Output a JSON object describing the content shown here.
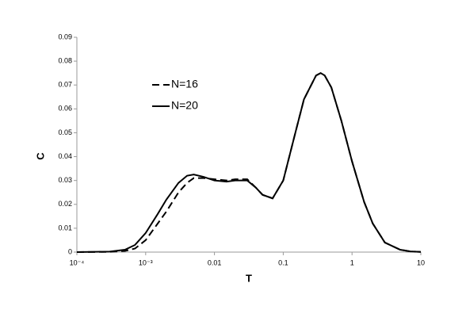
{
  "chart_data": {
    "type": "line",
    "xscale": "log",
    "xlabel": "T",
    "ylabel": "C",
    "x": [
      0.0001,
      0.0003,
      0.0005,
      0.0007,
      0.001,
      0.0015,
      0.002,
      0.003,
      0.004,
      0.005,
      0.007,
      0.01,
      0.015,
      0.02,
      0.03,
      0.04,
      0.05,
      0.07,
      0.1,
      0.15,
      0.2,
      0.3,
      0.35,
      0.4,
      0.5,
      0.7,
      1,
      1.5,
      2,
      3,
      5,
      7,
      10
    ],
    "series": [
      {
        "name": "N=16",
        "color": "#000000",
        "dash": true,
        "values": [
          0,
          0.0001,
          0.0005,
          0.0015,
          0.005,
          0.012,
          0.017,
          0.025,
          0.029,
          0.031,
          0.031,
          0.0305,
          0.03,
          0.0305,
          0.0305,
          0.027,
          0.024,
          0.0225,
          0.03,
          0.05,
          0.064,
          0.074,
          0.075,
          0.074,
          0.069,
          0.055,
          0.038,
          0.021,
          0.012,
          0.004,
          0.001,
          0.0003,
          0.0001
        ]
      },
      {
        "name": "N=20",
        "color": "#000000",
        "dash": false,
        "values": [
          0,
          0.0002,
          0.001,
          0.003,
          0.008,
          0.016,
          0.022,
          0.029,
          0.032,
          0.0325,
          0.0315,
          0.03,
          0.0295,
          0.03,
          0.03,
          0.027,
          0.024,
          0.0225,
          0.03,
          0.05,
          0.064,
          0.074,
          0.075,
          0.074,
          0.069,
          0.055,
          0.038,
          0.021,
          0.012,
          0.004,
          0.001,
          0.0003,
          0.0001
        ]
      }
    ],
    "xlim": [
      0.0001,
      10
    ],
    "xticks": [
      {
        "value": 0.0001,
        "label": "10⁻⁴"
      },
      {
        "value": 0.001,
        "label": "10⁻³"
      },
      0.01,
      0.1,
      1,
      10
    ],
    "ylim": [
      0,
      0.09
    ],
    "yticks": [
      0,
      0.01,
      0.02,
      0.03,
      0.04,
      0.05,
      0.06,
      0.07,
      0.08,
      0.09
    ],
    "grid": false
  }
}
